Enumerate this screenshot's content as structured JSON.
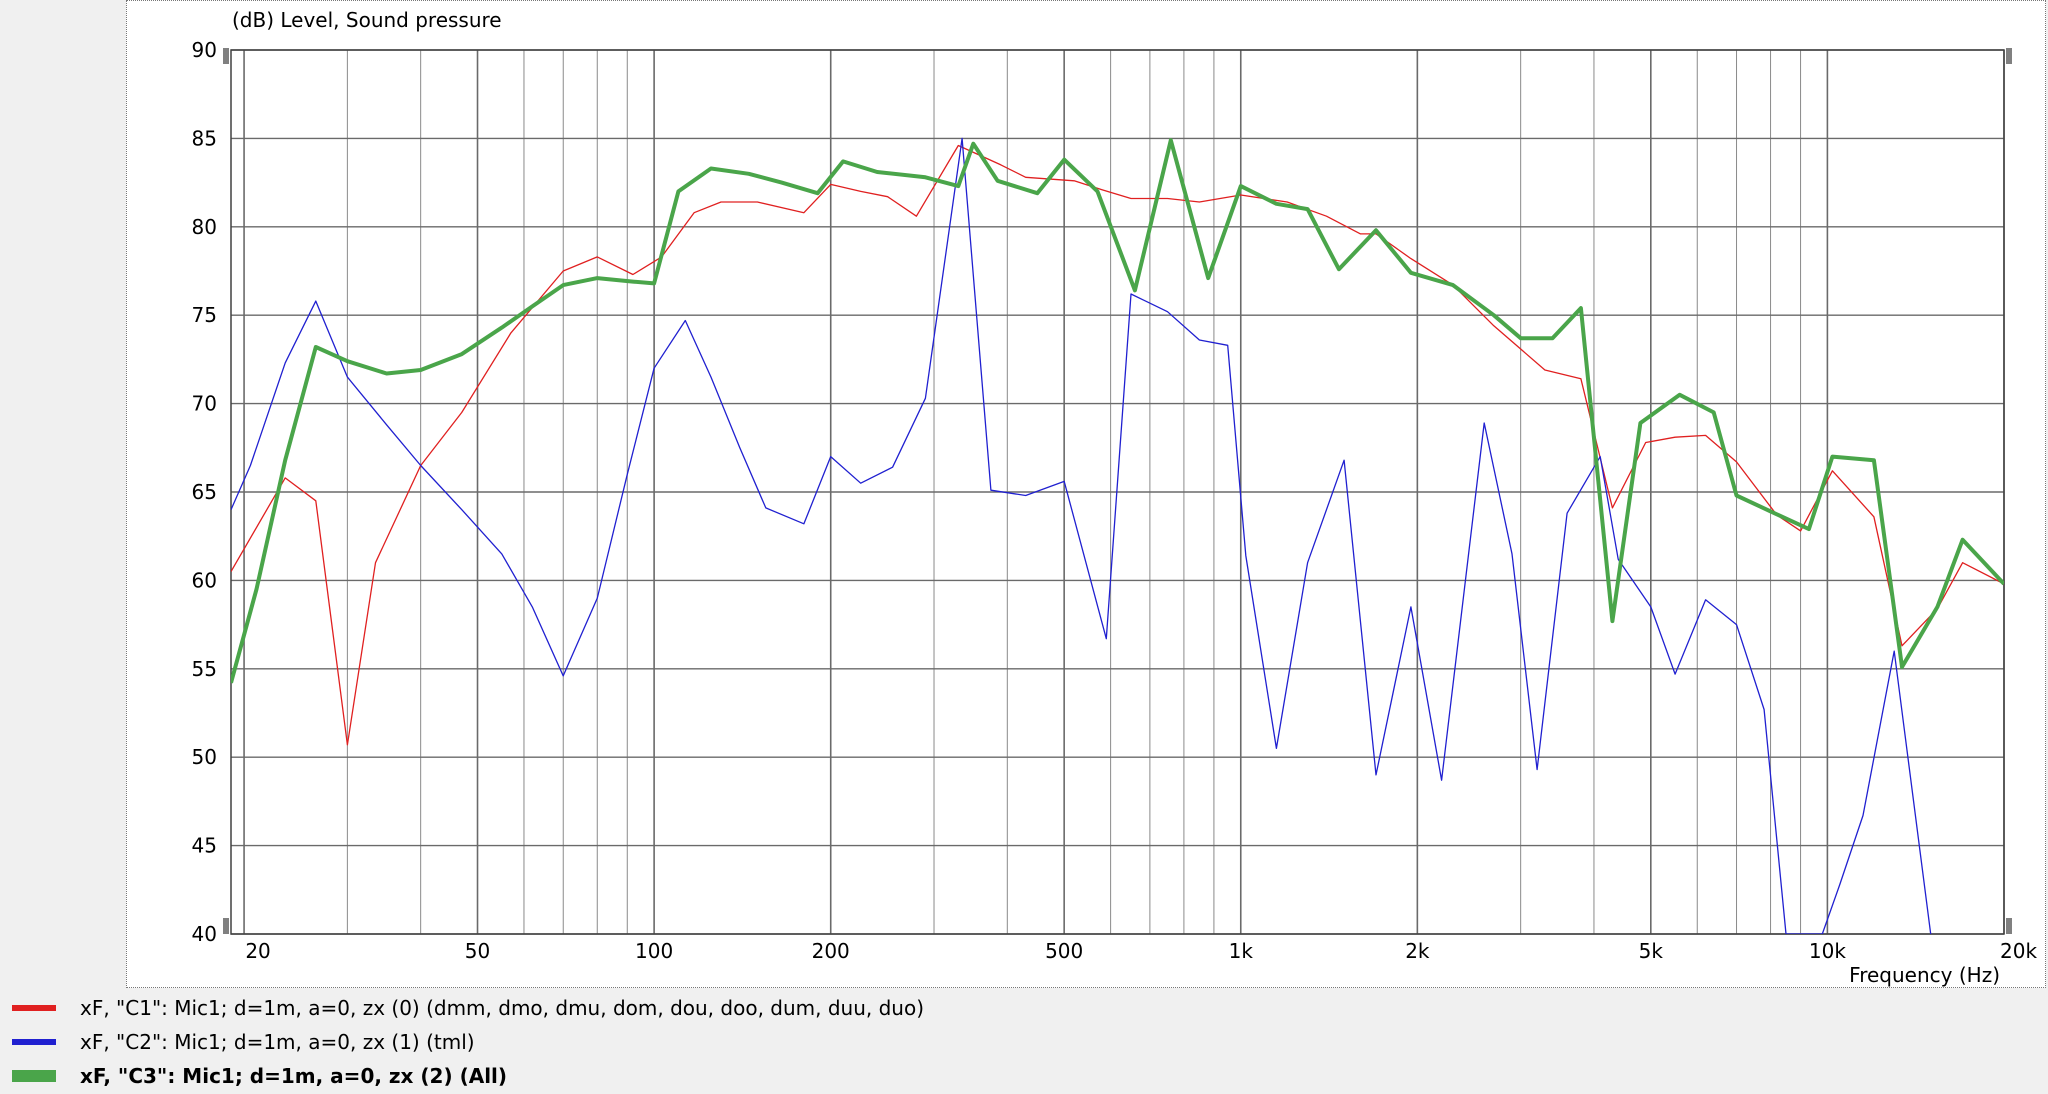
{
  "chart_data": {
    "type": "line",
    "ylabel": "(dB)  Level, Sound pressure",
    "xlabel": "Frequency  (Hz)",
    "x_scale": "log",
    "xlim": [
      19,
      20000
    ],
    "ylim": [
      40,
      90
    ],
    "grid": true,
    "legend_position": "bottom-left",
    "y_ticks": [
      40,
      45,
      50,
      55,
      60,
      65,
      70,
      75,
      80,
      85,
      90
    ],
    "x_ticks": [
      {
        "value": 20,
        "label": "20"
      },
      {
        "value": 50,
        "label": "50"
      },
      {
        "value": 100,
        "label": "100"
      },
      {
        "value": 200,
        "label": "200"
      },
      {
        "value": 500,
        "label": "500"
      },
      {
        "value": 1000,
        "label": "1k"
      },
      {
        "value": 2000,
        "label": "2k"
      },
      {
        "value": 5000,
        "label": "5k"
      },
      {
        "value": 10000,
        "label": "10k"
      },
      {
        "value": 20000,
        "label": "20k"
      }
    ],
    "series": [
      {
        "name": "xF, \"C1\": Mic1; d=1m, a=0, zx (0)  (dmm, dmo, dmu, dom, dou, doo, dum, duu, duo)",
        "color": "#e02020",
        "width": 1.3,
        "bold": false,
        "points": [
          [
            19,
            60.5
          ],
          [
            23.5,
            65.8
          ],
          [
            26.5,
            64.5
          ],
          [
            30,
            50.7
          ],
          [
            33.5,
            61
          ],
          [
            40,
            66.5
          ],
          [
            47,
            69.5
          ],
          [
            57,
            74
          ],
          [
            70,
            77.5
          ],
          [
            80,
            78.3
          ],
          [
            92,
            77.3
          ],
          [
            103,
            78.3
          ],
          [
            117,
            80.8
          ],
          [
            130,
            81.4
          ],
          [
            150,
            81.4
          ],
          [
            180,
            80.8
          ],
          [
            200,
            82.4
          ],
          [
            225,
            82
          ],
          [
            250,
            81.7
          ],
          [
            280,
            80.6
          ],
          [
            330,
            84.6
          ],
          [
            390,
            83.5
          ],
          [
            430,
            82.8
          ],
          [
            520,
            82.6
          ],
          [
            580,
            82.1
          ],
          [
            650,
            81.6
          ],
          [
            750,
            81.6
          ],
          [
            850,
            81.4
          ],
          [
            1000,
            81.8
          ],
          [
            1200,
            81.4
          ],
          [
            1400,
            80.6
          ],
          [
            1600,
            79.6
          ],
          [
            1700,
            79.6
          ],
          [
            1950,
            78.2
          ],
          [
            2300,
            76.7
          ],
          [
            2700,
            74.4
          ],
          [
            3300,
            71.9
          ],
          [
            3800,
            71.4
          ],
          [
            4300,
            64.1
          ],
          [
            4900,
            67.8
          ],
          [
            5500,
            68.1
          ],
          [
            6200,
            68.2
          ],
          [
            7000,
            66.7
          ],
          [
            8200,
            63.7
          ],
          [
            9000,
            62.8
          ],
          [
            10200,
            66.2
          ],
          [
            12000,
            63.6
          ],
          [
            13400,
            56.3
          ],
          [
            15400,
            58.4
          ],
          [
            17000,
            61
          ],
          [
            20000,
            59.8
          ]
        ]
      },
      {
        "name": "xF, \"C2\": Mic1; d=1m, a=0, zx (1)  (tml)",
        "color": "#2020d0",
        "width": 1.3,
        "bold": false,
        "points": [
          [
            19,
            64
          ],
          [
            20.5,
            66.5
          ],
          [
            23.5,
            72.3
          ],
          [
            26.5,
            75.8
          ],
          [
            30,
            71.5
          ],
          [
            35,
            68.8
          ],
          [
            40,
            66.5
          ],
          [
            47,
            64
          ],
          [
            55,
            61.5
          ],
          [
            62,
            58.5
          ],
          [
            70,
            54.6
          ],
          [
            80,
            59
          ],
          [
            90,
            66
          ],
          [
            100,
            72
          ],
          [
            113,
            74.7
          ],
          [
            125,
            71.5
          ],
          [
            140,
            67.5
          ],
          [
            155,
            64.1
          ],
          [
            180,
            63.2
          ],
          [
            200,
            67
          ],
          [
            225,
            65.5
          ],
          [
            255,
            66.4
          ],
          [
            290,
            70.3
          ],
          [
            335,
            85
          ],
          [
            375,
            65.1
          ],
          [
            430,
            64.8
          ],
          [
            500,
            65.6
          ],
          [
            590,
            56.7
          ],
          [
            650,
            76.2
          ],
          [
            750,
            75.2
          ],
          [
            850,
            73.6
          ],
          [
            950,
            73.3
          ],
          [
            1020,
            61.4
          ],
          [
            1150,
            50.5
          ],
          [
            1300,
            61
          ],
          [
            1500,
            66.8
          ],
          [
            1700,
            49
          ],
          [
            1950,
            58.5
          ],
          [
            2200,
            48.7
          ],
          [
            2600,
            68.9
          ],
          [
            2900,
            61.5
          ],
          [
            3200,
            49.3
          ],
          [
            3600,
            63.8
          ],
          [
            4100,
            67
          ],
          [
            4400,
            61.2
          ],
          [
            5000,
            58.5
          ],
          [
            5500,
            54.7
          ],
          [
            6200,
            58.9
          ],
          [
            7000,
            57.5
          ],
          [
            7800,
            52.7
          ],
          [
            8500,
            40
          ],
          [
            9800,
            40
          ],
          [
            10500,
            42.8
          ],
          [
            11500,
            46.7
          ],
          [
            13000,
            56
          ],
          [
            15000,
            40
          ]
        ]
      },
      {
        "name": "xF, \"C3\": Mic1; d=1m, a=0, zx (2)  (All)",
        "color": "#4aa54a",
        "width": 4,
        "bold": true,
        "points": [
          [
            19,
            54.2
          ],
          [
            21,
            59.5
          ],
          [
            23.5,
            66.8
          ],
          [
            26.5,
            73.2
          ],
          [
            30,
            72.4
          ],
          [
            35,
            71.7
          ],
          [
            40,
            71.9
          ],
          [
            47,
            72.8
          ],
          [
            55,
            74.3
          ],
          [
            62,
            75.5
          ],
          [
            70,
            76.7
          ],
          [
            80,
            77.1
          ],
          [
            92,
            76.9
          ],
          [
            100,
            76.8
          ],
          [
            110,
            82
          ],
          [
            125,
            83.3
          ],
          [
            145,
            83
          ],
          [
            165,
            82.5
          ],
          [
            190,
            81.9
          ],
          [
            210,
            83.7
          ],
          [
            240,
            83.1
          ],
          [
            290,
            82.8
          ],
          [
            330,
            82.3
          ],
          [
            350,
            84.7
          ],
          [
            385,
            82.6
          ],
          [
            450,
            81.9
          ],
          [
            500,
            83.8
          ],
          [
            570,
            82
          ],
          [
            660,
            76.4
          ],
          [
            760,
            84.9
          ],
          [
            880,
            77.1
          ],
          [
            1000,
            82.3
          ],
          [
            1150,
            81.3
          ],
          [
            1300,
            81
          ],
          [
            1470,
            77.6
          ],
          [
            1700,
            79.8
          ],
          [
            1950,
            77.4
          ],
          [
            2300,
            76.7
          ],
          [
            2700,
            75
          ],
          [
            3000,
            73.7
          ],
          [
            3400,
            73.7
          ],
          [
            3800,
            75.4
          ],
          [
            4300,
            57.7
          ],
          [
            4800,
            68.9
          ],
          [
            5600,
            70.5
          ],
          [
            6400,
            69.5
          ],
          [
            7000,
            64.8
          ],
          [
            8000,
            63.9
          ],
          [
            9300,
            62.9
          ],
          [
            10200,
            67
          ],
          [
            12000,
            66.8
          ],
          [
            13400,
            55.1
          ],
          [
            15400,
            58.5
          ],
          [
            17000,
            62.3
          ],
          [
            20000,
            59.8
          ]
        ]
      }
    ]
  }
}
